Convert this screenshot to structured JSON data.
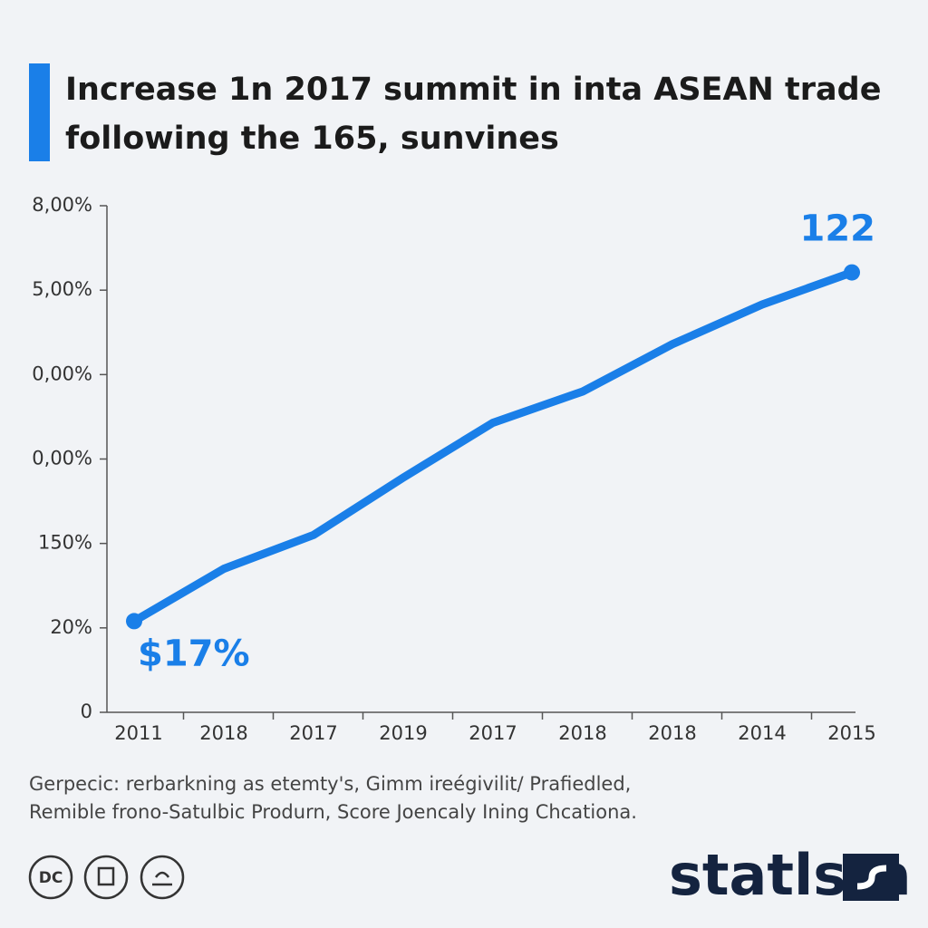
{
  "chart_data": {
    "type": "line",
    "title": [
      "Increase 1n 2017 summit in inta ASEAN trade",
      "following the 165, sunvines"
    ],
    "categories": [
      "2011",
      "2018",
      "2017",
      "2019",
      "2017",
      "2018",
      "2018",
      "2014",
      "2015"
    ],
    "values": [
      1.08,
      1.7,
      2.1,
      2.78,
      3.43,
      3.8,
      4.36,
      4.83,
      5.21
    ],
    "color": "#1a7fe8",
    "ylim": [
      0,
      6
    ],
    "yticks": [
      {
        "value": 0,
        "label": "0"
      },
      {
        "value": 1,
        "label": "20%"
      },
      {
        "value": 2,
        "label": "150%"
      },
      {
        "value": 3,
        "label": "0,00%"
      },
      {
        "value": 4,
        "label": "0,00%"
      },
      {
        "value": 5,
        "label": "5,00%"
      },
      {
        "value": 6,
        "label": "8,00%"
      }
    ],
    "annotations": [
      "$17%",
      "122"
    ],
    "source_note": [
      "Gerpecic: rerbarkning as etemty's, Gimm ireégivilit/ Prafiedled,",
      "Remible frono-Satulbic Produrn, Score Joencaly Ining Chcationa."
    ],
    "license_label": "DC",
    "brand": "statlsta"
  }
}
